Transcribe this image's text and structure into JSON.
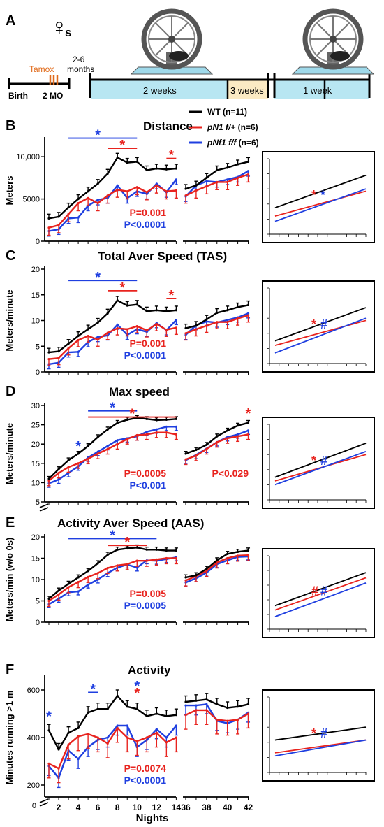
{
  "colors": {
    "wt": "#000000",
    "pn1": "#e8231e",
    "pnf1": "#1f3fe0",
    "tamox": "#e06a1a",
    "wheel_bg": "#b8e6f2",
    "week3_bg": "#fbeac4"
  },
  "timeline": {
    "panel_label": "A",
    "female_symbol": "♀",
    "female_suffix": "s",
    "birth": "Birth",
    "mo2": "2 MO",
    "tamox": "Tamox",
    "months_line1": "2-6",
    "months_line2": "months",
    "seg1": "2 weeks",
    "seg2": "3 weeks",
    "seg3": "1 week"
  },
  "legend": [
    {
      "key": "wt",
      "prefix": "",
      "italic": "WT",
      "suffix": " (n=11)"
    },
    {
      "key": "pn1",
      "prefix": "",
      "italic": "pN1 f/+",
      "suffix": " (n=6)"
    },
    {
      "key": "pnf1",
      "prefix": "",
      "italic": "pNf1 f/f",
      "suffix": " (n=6)"
    }
  ],
  "x_axis": {
    "label": "Nights",
    "left_ticks": [
      "2",
      "4",
      "6",
      "8",
      "10",
      "12",
      "14"
    ],
    "right_ticks": [
      "36",
      "38",
      "40",
      "42"
    ]
  },
  "chart_data": [
    {
      "type": "line",
      "panel": "B",
      "title": "Distance",
      "ylabel": "Meters",
      "ylim": [
        0,
        12000
      ],
      "yticks": [
        0,
        5000,
        10000
      ],
      "ytick_labels": [
        "0",
        "5000",
        "10,000"
      ],
      "x_left": [
        1,
        2,
        3,
        4,
        5,
        6,
        7,
        8,
        9,
        10,
        11,
        12,
        13,
        14
      ],
      "x_right": [
        36,
        37,
        38,
        39,
        40,
        41,
        42
      ],
      "series": [
        {
          "key": "wt",
          "left": [
            2700,
            2900,
            4000,
            5000,
            5900,
            6800,
            8000,
            9900,
            9300,
            9400,
            8400,
            8600,
            8500,
            8600
          ],
          "right": [
            6200,
            6600,
            7500,
            8400,
            8700,
            9100,
            9400
          ],
          "err": 500
        },
        {
          "key": "pn1",
          "left": [
            1600,
            1900,
            3200,
            4500,
            5100,
            4500,
            5400,
            6100,
            5900,
            6400,
            5800,
            6600,
            5900,
            6000
          ],
          "right": [
            5400,
            6000,
            6500,
            7000,
            7000,
            7500,
            7900
          ],
          "err": 900
        },
        {
          "key": "pnf1",
          "left": [
            1200,
            1400,
            2700,
            2800,
            4200,
            4900,
            5100,
            6600,
            5100,
            5900,
            5600,
            6800,
            5800,
            7300
          ],
          "right": [
            5300,
            6600,
            7100,
            7000,
            7300,
            7600,
            8300
          ],
          "err": 600
        }
      ],
      "sig_bars": [
        {
          "color": "pnf1",
          "x1": 3,
          "x2": 10,
          "y": 12200,
          "star_x": 6
        },
        {
          "color": "pn1",
          "x1": 7,
          "x2": 10,
          "y": 11000,
          "star_x": 8.5
        },
        {
          "color": "pn1",
          "x1": 13,
          "x2": 14,
          "y": 9800,
          "star_x": 13.5
        }
      ],
      "p_values": [
        {
          "color": "pn1",
          "text": "P=0.001"
        },
        {
          "color": "pnf1",
          "text": "P<0.0001"
        }
      ],
      "side_lines": [
        {
          "key": "wt",
          "y0": 0.35,
          "y1": 0.78
        },
        {
          "key": "pn1",
          "y0": 0.24,
          "y1": 0.57
        },
        {
          "key": "pnf1",
          "y0": 0.17,
          "y1": 0.6
        }
      ],
      "side_marks": [
        {
          "color": "pn1",
          "text": "*"
        },
        {
          "color": "pnf1",
          "text": "*"
        }
      ]
    },
    {
      "type": "line",
      "panel": "C",
      "title": "Total Aver Speed (TAS)",
      "ylabel": "Meters/minute",
      "ylim": [
        0,
        20
      ],
      "yticks": [
        0,
        5,
        10,
        15,
        20
      ],
      "ytick_labels": [
        "0",
        "5",
        "10",
        "15",
        "20"
      ],
      "x_left": [
        1,
        2,
        3,
        4,
        5,
        6,
        7,
        8,
        9,
        10,
        11,
        12,
        13,
        14
      ],
      "x_right": [
        36,
        37,
        38,
        39,
        40,
        41,
        42
      ],
      "series": [
        {
          "key": "wt",
          "left": [
            3.8,
            4.0,
            5.5,
            7.0,
            8.3,
            9.6,
            11.4,
            13.9,
            12.9,
            13.1,
            11.8,
            12.0,
            11.8,
            12.0
          ],
          "right": [
            8.5,
            9.0,
            10.2,
            11.5,
            12.0,
            12.6,
            13.0
          ],
          "err": 0.8
        },
        {
          "key": "pn1",
          "left": [
            2.5,
            2.7,
            4.6,
            6.2,
            7.0,
            6.3,
            7.6,
            8.5,
            8.3,
            8.9,
            8.1,
            9.3,
            8.2,
            8.6
          ],
          "right": [
            7.5,
            8.3,
            9.0,
            9.7,
            9.7,
            10.4,
            11.0
          ],
          "err": 1.3
        },
        {
          "key": "pnf1",
          "left": [
            1.5,
            1.8,
            3.8,
            3.9,
            5.8,
            6.8,
            7.1,
            9.2,
            7.2,
            8.3,
            7.8,
            9.5,
            8.1,
            10.1
          ],
          "right": [
            7.2,
            9.1,
            9.8,
            9.6,
            10.1,
            10.6,
            11.4
          ],
          "err": 0.9
        }
      ],
      "sig_bars": [
        {
          "color": "pnf1",
          "x1": 3,
          "x2": 10,
          "y": 17.8,
          "star_x": 6
        },
        {
          "color": "pn1",
          "x1": 7,
          "x2": 10,
          "y": 15.8,
          "star_x": 8.5
        },
        {
          "color": "pn1",
          "x1": 13,
          "x2": 14,
          "y": 14.3,
          "star_x": 13.5
        }
      ],
      "p_values": [
        {
          "color": "pn1",
          "text": "P=0.001"
        },
        {
          "color": "pnf1",
          "text": "P<0.0001"
        }
      ],
      "side_lines": [
        {
          "key": "wt",
          "y0": 0.3,
          "y1": 0.74
        },
        {
          "key": "pn1",
          "y0": 0.24,
          "y1": 0.57
        },
        {
          "key": "pnf1",
          "y0": 0.14,
          "y1": 0.6
        }
      ],
      "side_marks": [
        {
          "color": "pn1",
          "text": "*"
        },
        {
          "color": "pnf1",
          "text": "#"
        }
      ]
    },
    {
      "type": "line",
      "panel": "D",
      "title": "Max speed",
      "ylabel": "Meters/minute",
      "ylim": [
        5,
        30
      ],
      "y_break": true,
      "yticks": [
        5,
        10,
        15,
        20,
        25,
        30
      ],
      "ytick_labels": [
        "5",
        "10",
        "15",
        "20",
        "25",
        "30"
      ],
      "x_left": [
        1,
        2,
        3,
        4,
        5,
        6,
        7,
        8,
        9,
        10,
        11,
        12,
        13,
        14
      ],
      "x_right": [
        36,
        37,
        38,
        39,
        40,
        41,
        42
      ],
      "series": [
        {
          "key": "wt",
          "left": [
            11.0,
            13.5,
            15.8,
            17.5,
            19.5,
            21.8,
            23.8,
            25.5,
            26.3,
            26.8,
            26.5,
            26.2,
            26.3,
            26.5
          ],
          "right": [
            17.5,
            18.5,
            19.8,
            22.0,
            23.5,
            24.8,
            25.5
          ],
          "err": 0.6
        },
        {
          "key": "pn1",
          "left": [
            10.5,
            12.5,
            14.0,
            15.0,
            16.2,
            17.5,
            18.7,
            20.0,
            21.3,
            22.3,
            22.5,
            23.0,
            23.0,
            22.5
          ],
          "right": [
            16.0,
            17.0,
            18.7,
            20.5,
            21.5,
            22.0,
            22.5
          ],
          "err": 1.3
        },
        {
          "key": "pnf1",
          "left": [
            9.8,
            10.8,
            12.5,
            14.2,
            16.5,
            18.0,
            19.5,
            21.0,
            21.5,
            22.0,
            23.2,
            23.8,
            24.5,
            24.5
          ],
          "right": [
            15.8,
            17.2,
            18.8,
            20.5,
            21.8,
            22.5,
            23.5
          ],
          "err": 1.0
        }
      ],
      "sig_bars": [
        {
          "color": "pnf1",
          "x1": 5,
          "x2": 10,
          "y": 28.6,
          "star_x": 7.5
        },
        {
          "color": "pn1",
          "x1": 5,
          "x2": 14,
          "y": 27.0,
          "star_x": 9.5
        }
      ],
      "sig_stars": [
        {
          "color": "pnf1",
          "x": 4,
          "y": 19.5
        },
        {
          "color": "pn1",
          "x": 42,
          "y": 28.0,
          "side": "right"
        }
      ],
      "p_values": [
        {
          "color": "pn1",
          "text": "P=0.0005"
        },
        {
          "color": "pnf1",
          "text": "P<0.001"
        }
      ],
      "p_values_right": [
        {
          "color": "pn1",
          "text": "P<0.029"
        }
      ],
      "side_lines": [
        {
          "key": "wt",
          "y0": 0.3,
          "y1": 0.75
        },
        {
          "key": "pn1",
          "y0": 0.25,
          "y1": 0.6
        },
        {
          "key": "pnf1",
          "y0": 0.2,
          "y1": 0.64
        }
      ],
      "side_marks": [
        {
          "color": "pn1",
          "text": "*"
        },
        {
          "color": "pnf1",
          "text": "#"
        }
      ]
    },
    {
      "type": "line",
      "panel": "E",
      "title": "Activity Aver Speed (AAS)",
      "ylabel": "Meters/min (w/o 0s)",
      "ylim": [
        0,
        20
      ],
      "yticks": [
        0,
        5,
        10,
        15,
        20
      ],
      "ytick_labels": [
        "0",
        "5",
        "10",
        "15",
        "20"
      ],
      "x_left": [
        1,
        2,
        3,
        4,
        5,
        6,
        7,
        8,
        9,
        10,
        11,
        12,
        13,
        14
      ],
      "x_right": [
        36,
        37,
        38,
        39,
        40,
        41,
        42
      ],
      "series": [
        {
          "key": "wt",
          "left": [
            5.5,
            7.4,
            9.0,
            10.5,
            12.0,
            13.8,
            15.8,
            17.0,
            17.3,
            17.5,
            17.0,
            17.0,
            16.8,
            16.8
          ],
          "right": [
            10.5,
            11.0,
            12.5,
            14.5,
            16.0,
            16.5,
            16.8
          ],
          "err": 0.6
        },
        {
          "key": "pn1",
          "left": [
            5.0,
            6.5,
            8.2,
            9.4,
            10.6,
            11.5,
            12.7,
            13.3,
            13.6,
            14.4,
            14.4,
            14.7,
            15.0,
            15.0
          ],
          "right": [
            9.8,
            10.8,
            12.0,
            14.0,
            15.0,
            15.6,
            15.7
          ],
          "err": 1.3
        },
        {
          "key": "pnf1",
          "left": [
            4.2,
            5.5,
            7.0,
            7.2,
            8.8,
            10.0,
            11.5,
            12.8,
            13.5,
            12.8,
            14.5,
            14.4,
            14.8,
            15.2
          ],
          "right": [
            9.3,
            10.3,
            11.6,
            13.6,
            14.5,
            15.3,
            15.4
          ],
          "err": 0.8
        }
      ],
      "sig_bars": [
        {
          "color": "pnf1",
          "x1": 3,
          "x2": 12,
          "y": 19.6,
          "star_x": 7.5
        },
        {
          "color": "pn1",
          "x1": 7,
          "x2": 11,
          "y": 18.0,
          "star_x": 9
        }
      ],
      "p_values": [
        {
          "color": "pn1",
          "text": "P=0.005"
        },
        {
          "color": "pnf1",
          "text": "P=0.0005"
        }
      ],
      "side_lines": [
        {
          "key": "wt",
          "y0": 0.32,
          "y1": 0.77
        },
        {
          "key": "pn1",
          "y0": 0.26,
          "y1": 0.7
        },
        {
          "key": "pnf1",
          "y0": 0.17,
          "y1": 0.63
        }
      ],
      "side_marks": [
        {
          "color": "pn1",
          "text": "#"
        },
        {
          "color": "pnf1",
          "text": "#"
        }
      ]
    },
    {
      "type": "line",
      "panel": "F",
      "title": "Activity",
      "ylabel": "Minutes running >1 m",
      "ylim": [
        150,
        650
      ],
      "y_break": true,
      "yticks": [
        200,
        400,
        600
      ],
      "ytick_labels": [
        "200",
        "400",
        "600"
      ],
      "y_zero_label": "0",
      "x_left": [
        1,
        2,
        3,
        4,
        5,
        6,
        7,
        8,
        9,
        10,
        11,
        12,
        13,
        14
      ],
      "x_right": [
        36,
        37,
        38,
        39,
        40,
        41,
        42
      ],
      "series": [
        {
          "key": "wt",
          "left": [
            430,
            350,
            420,
            440,
            505,
            520,
            520,
            575,
            530,
            520,
            490,
            500,
            490,
            495
          ],
          "right": [
            550,
            555,
            560,
            540,
            525,
            530,
            540
          ],
          "err": 25
        },
        {
          "key": "pn1",
          "left": [
            290,
            270,
            370,
            405,
            415,
            400,
            375,
            440,
            400,
            385,
            400,
            420,
            380,
            400
          ],
          "right": [
            495,
            515,
            515,
            475,
            470,
            475,
            500
          ],
          "err": 60
        },
        {
          "key": "pnf1",
          "left": [
            280,
            230,
            345,
            310,
            360,
            390,
            400,
            450,
            450,
            360,
            390,
            435,
            400,
            450
          ],
          "right": [
            535,
            535,
            540,
            470,
            460,
            475,
            505
          ],
          "err": 40
        }
      ],
      "sig_bars": [
        {
          "color": "pnf1",
          "x1": 5,
          "x2": 6,
          "y": 590,
          "star_x": 5.5
        }
      ],
      "sig_stars": [
        {
          "color": "pnf1",
          "x": 1,
          "y": 490
        },
        {
          "color": "pnf1",
          "x": 10,
          "y": 618
        },
        {
          "color": "pn1",
          "x": 10,
          "y": 588
        }
      ],
      "p_values": [
        {
          "color": "pn1",
          "text": "P=0.0074"
        },
        {
          "color": "pnf1",
          "text": "P<0.0001"
        }
      ],
      "side_lines": [
        {
          "key": "wt",
          "y0": 0.43,
          "y1": 0.6
        },
        {
          "key": "pn1",
          "y0": 0.26,
          "y1": 0.43
        },
        {
          "key": "pnf1",
          "y0": 0.22,
          "y1": 0.43
        }
      ],
      "side_marks": [
        {
          "color": "pn1",
          "text": "*"
        },
        {
          "color": "pnf1",
          "text": "#"
        }
      ]
    }
  ]
}
